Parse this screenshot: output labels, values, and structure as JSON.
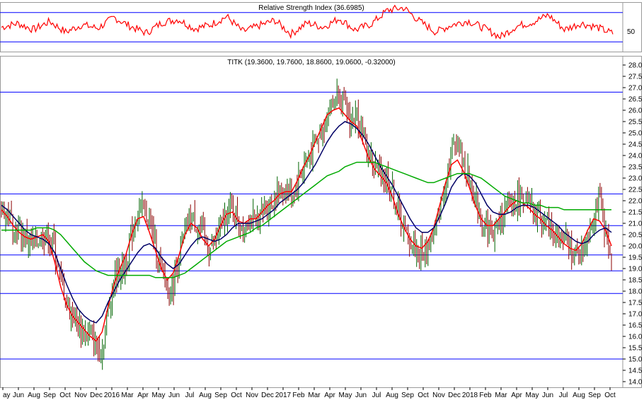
{
  "chart_data": [
    {
      "type": "line",
      "panel": "rsi",
      "title": "Relative Strength Index (36.6985)",
      "y_tick_labels": [
        "50"
      ],
      "ylim": [
        0,
        100
      ],
      "series_color": "#ff0000",
      "band_color": "#0000ff",
      "bands": [
        80,
        20
      ],
      "sample_values": [
        50,
        58,
        45,
        62,
        40,
        55,
        48,
        70,
        52,
        38,
        60,
        66,
        47,
        55,
        72,
        41,
        53,
        64,
        36,
        59,
        50,
        68,
        44,
        57,
        85,
        90,
        62,
        40,
        55,
        63,
        48,
        30,
        52,
        60,
        75,
        45,
        58,
        50,
        37
      ]
    },
    {
      "type": "candlestick",
      "panel": "price",
      "title": "TITK (19.3600, 19.7600, 18.8600, 19.0600, -0.32000)",
      "ylim": [
        14.0,
        28.0
      ],
      "y_tick_labels": [
        "28.0",
        "27.5",
        "27.0",
        "26.5",
        "26.0",
        "25.5",
        "25.0",
        "24.5",
        "24.0",
        "23.5",
        "23.0",
        "22.5",
        "22.0",
        "21.5",
        "21.0",
        "20.5",
        "20.0",
        "19.5",
        "19.0",
        "18.5",
        "18.0",
        "17.5",
        "17.0",
        "16.5",
        "16.0",
        "15.5",
        "15.0",
        "14.5",
        "14.0"
      ],
      "x_tick_labels": [
        "ay",
        "Jun",
        "Aug",
        "Sep",
        "Oct",
        "Nov",
        "Dec",
        "2016",
        "Mar",
        "Apr",
        "May",
        "Jun",
        "Jul",
        "Aug",
        "Sep",
        "Oct",
        "Nov",
        "Dec",
        "2017",
        "Feb",
        "Mar",
        "Apr",
        "May",
        "Jun",
        "Jul",
        "Aug",
        "Sep",
        "Oct",
        "Nov",
        "Dec",
        "2018",
        "Feb",
        "Mar",
        "Apr",
        "May",
        "Jun",
        "Jul",
        "Aug",
        "Sep",
        "Oct"
      ],
      "horizontal_levels": [
        26.8,
        22.3,
        20.9,
        19.6,
        18.9,
        17.9,
        15.0
      ],
      "close_path": [
        21.8,
        21.4,
        21.0,
        20.6,
        20.3,
        20.1,
        20.2,
        20.5,
        20.4,
        19.8,
        18.5,
        17.5,
        17.0,
        16.5,
        16.2,
        16.0,
        15.5,
        15.3,
        17.2,
        18.5,
        19.0,
        19.2,
        20.5,
        21.5,
        21.8,
        21.0,
        20.0,
        19.0,
        18.0,
        18.2,
        19.5,
        20.5,
        21.3,
        21.0,
        20.5,
        19.8,
        20.0,
        20.8,
        21.5,
        21.8,
        21.2,
        20.8,
        21.3,
        21.0,
        21.5,
        21.8,
        22.0,
        22.3,
        22.5,
        22.2,
        22.8,
        23.5,
        24.0,
        24.5,
        25.0,
        25.8,
        26.3,
        26.8,
        26.0,
        25.5,
        25.8,
        25.0,
        24.0,
        23.5,
        23.2,
        23.0,
        22.5,
        21.5,
        20.8,
        20.2,
        19.8,
        19.6,
        20.0,
        20.5,
        21.5,
        23.0,
        24.0,
        25.0,
        23.5,
        23.0,
        22.0,
        21.2,
        20.8,
        20.5,
        21.0,
        21.5,
        21.8,
        22.0,
        22.2,
        21.8,
        21.5,
        21.3,
        21.0,
        20.8,
        20.5,
        20.2,
        20.0,
        19.6,
        19.8,
        20.5,
        21.5,
        22.0,
        20.6,
        19.06
      ],
      "series": [
        {
          "name": "",
          "color": "#ff0000",
          "values": [
            21.6,
            21.3,
            20.9,
            20.6,
            20.4,
            20.3,
            20.4,
            20.5,
            20.2,
            19.3,
            18.2,
            17.4,
            16.9,
            16.6,
            16.3,
            16.0,
            15.8,
            16.2,
            17.3,
            18.3,
            19.0,
            19.6,
            20.5,
            21.2,
            21.3,
            20.6,
            19.8,
            19.0,
            18.5,
            18.8,
            19.6,
            20.5,
            21.0,
            20.8,
            20.3,
            20.0,
            20.3,
            20.9,
            21.4,
            21.5,
            21.1,
            21.0,
            21.2,
            21.2,
            21.5,
            21.8,
            22.0,
            22.3,
            22.4,
            22.4,
            22.9,
            23.5,
            24.0,
            24.6,
            25.2,
            25.8,
            26.0,
            26.1,
            25.8,
            25.5,
            25.3,
            24.6,
            23.9,
            23.4,
            23.1,
            22.8,
            22.2,
            21.4,
            20.8,
            20.3,
            20.0,
            19.9,
            20.2,
            20.8,
            21.8,
            22.8,
            23.6,
            23.8,
            23.3,
            22.6,
            21.8,
            21.2,
            20.9,
            20.9,
            21.2,
            21.5,
            21.8,
            22.0,
            21.9,
            21.7,
            21.4,
            21.2,
            20.9,
            20.7,
            20.4,
            20.1,
            19.9,
            19.8,
            20.1,
            20.7,
            21.2,
            21.1,
            20.7,
            20.0
          ]
        },
        {
          "name": "",
          "color": "#000066",
          "values": [
            21.8,
            21.6,
            21.3,
            21.0,
            20.7,
            20.5,
            20.4,
            20.3,
            20.1,
            19.7,
            19.0,
            18.3,
            17.7,
            17.2,
            16.9,
            16.7,
            16.6,
            16.9,
            17.5,
            18.0,
            18.5,
            18.9,
            19.3,
            19.7,
            20.0,
            20.1,
            19.9,
            19.5,
            19.2,
            19.0,
            19.2,
            19.6,
            20.0,
            20.3,
            20.4,
            20.3,
            20.2,
            20.3,
            20.5,
            20.8,
            21.0,
            21.0,
            21.0,
            21.1,
            21.2,
            21.4,
            21.6,
            21.9,
            22.1,
            22.3,
            22.5,
            22.8,
            23.2,
            23.6,
            24.1,
            24.6,
            25.0,
            25.3,
            25.5,
            25.4,
            25.2,
            24.9,
            24.5,
            24.0,
            23.5,
            23.1,
            22.7,
            22.2,
            21.7,
            21.2,
            20.8,
            20.6,
            20.6,
            20.8,
            21.3,
            21.9,
            22.6,
            23.0,
            23.2,
            23.1,
            22.8,
            22.3,
            21.8,
            21.5,
            21.4,
            21.4,
            21.5,
            21.7,
            21.8,
            21.8,
            21.7,
            21.5,
            21.3,
            21.1,
            20.9,
            20.6,
            20.4,
            20.2,
            20.1,
            20.2,
            20.5,
            20.7,
            20.8,
            20.6
          ]
        },
        {
          "name": "",
          "color": "#00aa00",
          "values": [
            20.7,
            20.7,
            20.7,
            20.7,
            20.7,
            20.7,
            20.8,
            20.8,
            20.8,
            20.7,
            20.5,
            20.2,
            19.9,
            19.6,
            19.3,
            19.1,
            18.9,
            18.8,
            18.7,
            18.7,
            18.7,
            18.7,
            18.7,
            18.7,
            18.7,
            18.7,
            18.6,
            18.6,
            18.6,
            18.6,
            18.7,
            18.8,
            19.0,
            19.2,
            19.4,
            19.6,
            19.8,
            20.0,
            20.2,
            20.3,
            20.4,
            20.5,
            20.6,
            20.8,
            20.9,
            21.1,
            21.3,
            21.5,
            21.7,
            21.9,
            22.1,
            22.3,
            22.5,
            22.7,
            22.9,
            23.1,
            23.2,
            23.3,
            23.5,
            23.6,
            23.7,
            23.7,
            23.7,
            23.7,
            23.6,
            23.5,
            23.4,
            23.3,
            23.2,
            23.1,
            23.0,
            22.9,
            22.8,
            22.8,
            22.9,
            23.0,
            23.1,
            23.2,
            23.2,
            23.2,
            23.1,
            23.0,
            22.8,
            22.6,
            22.4,
            22.2,
            22.1,
            22.0,
            21.9,
            21.9,
            21.8,
            21.8,
            21.7,
            21.7,
            21.7,
            21.6,
            21.6,
            21.6,
            21.6,
            21.6,
            21.6,
            21.6,
            21.6,
            21.6
          ]
        }
      ]
    }
  ]
}
